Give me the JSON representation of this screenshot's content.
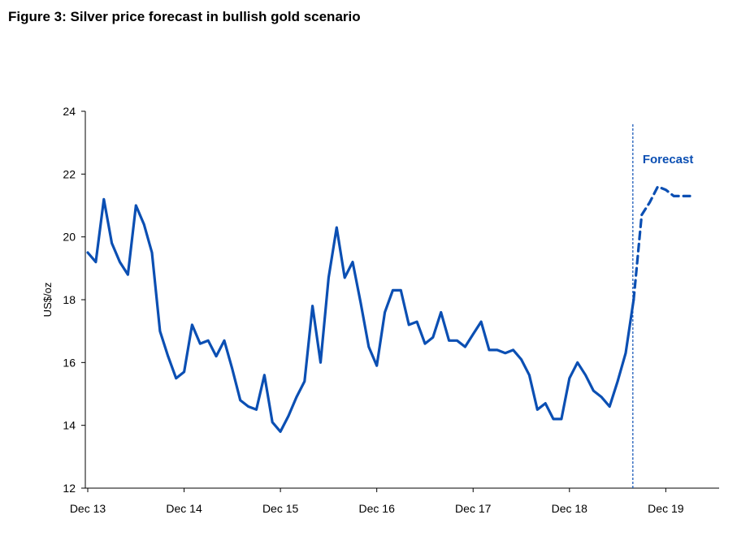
{
  "figure_title": "Figure 3: Silver price forecast in bullish gold scenario",
  "chart_data": {
    "type": "line",
    "title": "",
    "ylabel": "US$/oz",
    "xlabel": "",
    "ylim": [
      12,
      24
    ],
    "yticks": [
      12,
      14,
      16,
      18,
      20,
      22,
      24
    ],
    "x_tick_labels": [
      "Dec 13",
      "Dec 14",
      "Dec 15",
      "Dec 16",
      "Dec 17",
      "Dec 18",
      "Dec 19"
    ],
    "x_period": "monthly",
    "x_start": "Dec 13",
    "annotation": {
      "text": "Forecast",
      "at_month_index": 68
    },
    "line_color": "#0b4fb3",
    "series": [
      {
        "style": "solid",
        "start_index": 0,
        "values": [
          19.5,
          19.2,
          21.2,
          19.8,
          19.2,
          18.8,
          21.0,
          20.4,
          19.5,
          17.0,
          16.2,
          15.5,
          15.7,
          17.2,
          16.6,
          16.7,
          16.2,
          16.7,
          15.8,
          14.8,
          14.6,
          14.5,
          15.6,
          14.1,
          13.8,
          14.3,
          14.9,
          15.4,
          17.8,
          16.0,
          18.7,
          20.3,
          18.7,
          19.2,
          17.9,
          16.5,
          15.9,
          17.6,
          18.3,
          18.3,
          17.2,
          17.3,
          16.6,
          16.8,
          17.6,
          16.7,
          16.7,
          16.5,
          16.9,
          17.3,
          16.4,
          16.4,
          16.3,
          16.4,
          16.1,
          15.6,
          14.5,
          14.7,
          14.2,
          14.2,
          15.5,
          16.0,
          15.6,
          15.1,
          14.9,
          14.6,
          15.4,
          16.3,
          18.0
        ]
      },
      {
        "style": "dashed",
        "start_index": 68,
        "values": [
          18.0,
          20.7,
          21.1,
          21.6,
          21.5,
          21.3,
          21.3,
          21.3
        ]
      }
    ]
  }
}
